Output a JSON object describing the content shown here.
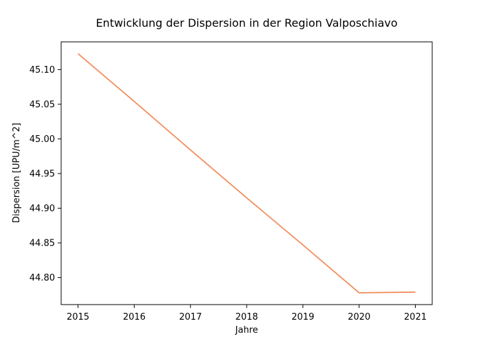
{
  "chart_data": {
    "type": "line",
    "title": "Entwicklung der Dispersion in der Region Valposchiavo",
    "xlabel": "Jahre",
    "ylabel": "Dispersion [UPU/m^2]",
    "x": [
      2015,
      2016,
      2017,
      2018,
      2019,
      2020,
      2021
    ],
    "series": [
      {
        "values": [
          45.123,
          45.054,
          44.984,
          44.915,
          44.847,
          44.778,
          44.779
        ],
        "color": "#f28e5f"
      }
    ],
    "xticks": [
      "2015",
      "2016",
      "2017",
      "2018",
      "2019",
      "2020",
      "2021"
    ],
    "yticks": [
      "44.80",
      "44.85",
      "44.90",
      "44.95",
      "45.00",
      "45.05",
      "45.10"
    ],
    "xlim": [
      2014.7,
      2021.3
    ],
    "ylim": [
      44.761,
      45.14
    ],
    "grid": false,
    "legend": false
  }
}
